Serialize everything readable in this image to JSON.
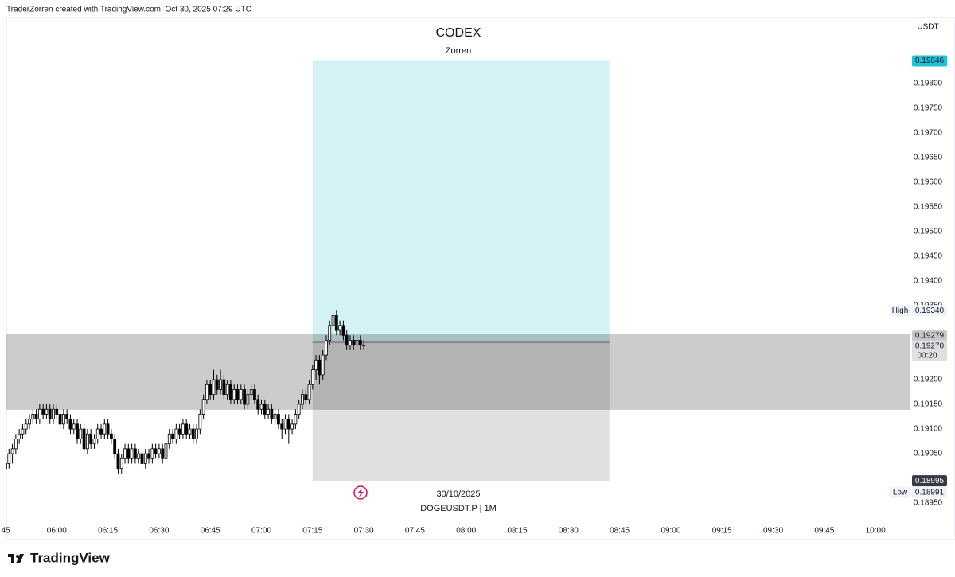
{
  "header": "TraderZorren created with TradingView.com, Oct 30, 2025 07:29 UTC",
  "footer": {
    "brand": "TradingView"
  },
  "chart_data": {
    "type": "candlestick",
    "title": "CODEX",
    "subtitle": "Zorren",
    "date_label": "30/10/2025",
    "symbol": "DOGEUSDT.P  |  1M",
    "currency": "USDT",
    "up_color": "#ffffff",
    "down_color": "#000000",
    "x": [
      "05:45",
      "05:46",
      "05:47",
      "05:48",
      "05:49",
      "05:50",
      "05:51",
      "05:52",
      "05:53",
      "05:54",
      "05:55",
      "05:56",
      "05:57",
      "05:58",
      "05:59",
      "06:00",
      "06:01",
      "06:02",
      "06:03",
      "06:04",
      "06:05",
      "06:06",
      "06:07",
      "06:08",
      "06:09",
      "06:10",
      "06:11",
      "06:12",
      "06:13",
      "06:14",
      "06:15",
      "06:16",
      "06:17",
      "06:18",
      "06:19",
      "06:20",
      "06:21",
      "06:22",
      "06:23",
      "06:24",
      "06:25",
      "06:26",
      "06:27",
      "06:28",
      "06:29",
      "06:30",
      "06:31",
      "06:32",
      "06:33",
      "06:34",
      "06:35",
      "06:36",
      "06:37",
      "06:38",
      "06:39",
      "06:40",
      "06:41",
      "06:42",
      "06:43",
      "06:44",
      "06:45",
      "06:46",
      "06:47",
      "06:48",
      "06:49",
      "06:50",
      "06:51",
      "06:52",
      "06:53",
      "06:54",
      "06:55",
      "06:56",
      "06:57",
      "06:58",
      "06:59",
      "07:00",
      "07:01",
      "07:02",
      "07:03",
      "07:04",
      "07:05",
      "07:06",
      "07:07",
      "07:08",
      "07:09",
      "07:10",
      "07:11",
      "07:12",
      "07:13",
      "07:14",
      "07:15",
      "07:16",
      "07:17",
      "07:18",
      "07:19",
      "07:20",
      "07:21",
      "07:22",
      "07:23",
      "07:24",
      "07:25",
      "07:26",
      "07:27",
      "07:28",
      "07:29",
      "07:30"
    ],
    "ohlc": [
      [
        0.1902,
        0.1904,
        0.18991,
        0.1903
      ],
      [
        0.1903,
        0.1906,
        0.1902,
        0.1905
      ],
      [
        0.1905,
        0.1907,
        0.1903,
        0.1906
      ],
      [
        0.1906,
        0.1909,
        0.1905,
        0.1908
      ],
      [
        0.1908,
        0.191,
        0.1907,
        0.1909
      ],
      [
        0.1909,
        0.1911,
        0.1908,
        0.191
      ],
      [
        0.191,
        0.1912,
        0.1909,
        0.1911
      ],
      [
        0.1911,
        0.1913,
        0.191,
        0.1912
      ],
      [
        0.1912,
        0.1914,
        0.1911,
        0.1913
      ],
      [
        0.1913,
        0.1914,
        0.1911,
        0.1912
      ],
      [
        0.1912,
        0.1915,
        0.1911,
        0.1914
      ],
      [
        0.1914,
        0.1915,
        0.1912,
        0.1913
      ],
      [
        0.1913,
        0.1915,
        0.1912,
        0.1914
      ],
      [
        0.1914,
        0.1915,
        0.1911,
        0.1912
      ],
      [
        0.1912,
        0.1915,
        0.1911,
        0.1914
      ],
      [
        0.1914,
        0.1915,
        0.1912,
        0.1913
      ],
      [
        0.1913,
        0.1914,
        0.191,
        0.1911
      ],
      [
        0.1911,
        0.1914,
        0.191,
        0.1913
      ],
      [
        0.1913,
        0.1914,
        0.1911,
        0.1912
      ],
      [
        0.1912,
        0.1913,
        0.1909,
        0.191
      ],
      [
        0.191,
        0.1912,
        0.1909,
        0.1911
      ],
      [
        0.1911,
        0.1912,
        0.1907,
        0.1908
      ],
      [
        0.1908,
        0.1911,
        0.1907,
        0.191
      ],
      [
        0.191,
        0.1911,
        0.1905,
        0.1906
      ],
      [
        0.1906,
        0.191,
        0.1905,
        0.1909
      ],
      [
        0.1909,
        0.191,
        0.1906,
        0.1907
      ],
      [
        0.1907,
        0.1909,
        0.1906,
        0.1908
      ],
      [
        0.1908,
        0.1911,
        0.1907,
        0.191
      ],
      [
        0.191,
        0.1911,
        0.1908,
        0.1909
      ],
      [
        0.1909,
        0.1912,
        0.1908,
        0.1911
      ],
      [
        0.1911,
        0.1912,
        0.1908,
        0.1909
      ],
      [
        0.1909,
        0.191,
        0.1907,
        0.1908
      ],
      [
        0.1908,
        0.1909,
        0.1904,
        0.1905
      ],
      [
        0.1905,
        0.1906,
        0.1901,
        0.1902
      ],
      [
        0.1902,
        0.1905,
        0.1901,
        0.1904
      ],
      [
        0.1904,
        0.1907,
        0.1903,
        0.1906
      ],
      [
        0.1906,
        0.1907,
        0.1903,
        0.1904
      ],
      [
        0.1904,
        0.1907,
        0.1903,
        0.1906
      ],
      [
        0.1906,
        0.1907,
        0.1903,
        0.1904
      ],
      [
        0.1904,
        0.1906,
        0.1903,
        0.1905
      ],
      [
        0.1905,
        0.1906,
        0.1902,
        0.1903
      ],
      [
        0.1903,
        0.1906,
        0.1902,
        0.1905
      ],
      [
        0.1905,
        0.1906,
        0.1903,
        0.1904
      ],
      [
        0.1904,
        0.1907,
        0.1903,
        0.1906
      ],
      [
        0.1906,
        0.1907,
        0.1904,
        0.1905
      ],
      [
        0.1905,
        0.1907,
        0.1904,
        0.1906
      ],
      [
        0.1906,
        0.1907,
        0.1903,
        0.1904
      ],
      [
        0.1904,
        0.1908,
        0.1903,
        0.1907
      ],
      [
        0.1907,
        0.191,
        0.1906,
        0.1909
      ],
      [
        0.1909,
        0.191,
        0.1907,
        0.1908
      ],
      [
        0.1908,
        0.1911,
        0.1907,
        0.191
      ],
      [
        0.191,
        0.1911,
        0.1908,
        0.1909
      ],
      [
        0.1909,
        0.1912,
        0.1908,
        0.1911
      ],
      [
        0.1911,
        0.1912,
        0.1908,
        0.1909
      ],
      [
        0.1909,
        0.1911,
        0.1908,
        0.191
      ],
      [
        0.191,
        0.1911,
        0.1907,
        0.1908
      ],
      [
        0.1908,
        0.1911,
        0.1907,
        0.191
      ],
      [
        0.191,
        0.1914,
        0.1909,
        0.1913
      ],
      [
        0.1913,
        0.1917,
        0.1912,
        0.1916
      ],
      [
        0.1916,
        0.192,
        0.1915,
        0.1919
      ],
      [
        0.1919,
        0.192,
        0.1916,
        0.1917
      ],
      [
        0.1917,
        0.1922,
        0.1916,
        0.192
      ],
      [
        0.192,
        0.1921,
        0.1917,
        0.1918
      ],
      [
        0.1918,
        0.1922,
        0.1917,
        0.192
      ],
      [
        0.192,
        0.1921,
        0.1916,
        0.1917
      ],
      [
        0.1917,
        0.192,
        0.1916,
        0.1919
      ],
      [
        0.1919,
        0.192,
        0.1915,
        0.1916
      ],
      [
        0.1916,
        0.1919,
        0.1915,
        0.1918
      ],
      [
        0.1918,
        0.1919,
        0.1915,
        0.1916
      ],
      [
        0.1916,
        0.1919,
        0.1915,
        0.1918
      ],
      [
        0.1918,
        0.1919,
        0.1914,
        0.1915
      ],
      [
        0.1915,
        0.1918,
        0.1914,
        0.1917
      ],
      [
        0.1917,
        0.1919,
        0.1916,
        0.1918
      ],
      [
        0.1918,
        0.1919,
        0.1915,
        0.1916
      ],
      [
        0.1916,
        0.1917,
        0.1913,
        0.1914
      ],
      [
        0.1914,
        0.1916,
        0.1913,
        0.1915
      ],
      [
        0.1915,
        0.1916,
        0.1912,
        0.1913
      ],
      [
        0.1913,
        0.1915,
        0.1912,
        0.1914
      ],
      [
        0.1914,
        0.1915,
        0.1911,
        0.1912
      ],
      [
        0.1912,
        0.1914,
        0.1911,
        0.1913
      ],
      [
        0.1913,
        0.1914,
        0.191,
        0.1911
      ],
      [
        0.1911,
        0.1912,
        0.1908,
        0.191
      ],
      [
        0.191,
        0.1913,
        0.1909,
        0.1912
      ],
      [
        0.1912,
        0.1913,
        0.1907,
        0.191
      ],
      [
        0.191,
        0.1912,
        0.1909,
        0.1911
      ],
      [
        0.1911,
        0.1914,
        0.191,
        0.1913
      ],
      [
        0.1913,
        0.1916,
        0.1912,
        0.1915
      ],
      [
        0.1915,
        0.1918,
        0.1914,
        0.1917
      ],
      [
        0.1917,
        0.1918,
        0.1915,
        0.1916
      ],
      [
        0.1916,
        0.192,
        0.1915,
        0.1919
      ],
      [
        0.1919,
        0.1923,
        0.1918,
        0.1922
      ],
      [
        0.1922,
        0.1925,
        0.192,
        0.1924
      ],
      [
        0.1924,
        0.1925,
        0.1919,
        0.1921
      ],
      [
        0.1921,
        0.1926,
        0.192,
        0.1925
      ],
      [
        0.1925,
        0.1929,
        0.1924,
        0.1928
      ],
      [
        0.1928,
        0.1932,
        0.1927,
        0.1931
      ],
      [
        0.1931,
        0.1934,
        0.193,
        0.1933
      ],
      [
        0.1933,
        0.1934,
        0.1929,
        0.193
      ],
      [
        0.193,
        0.1932,
        0.1929,
        0.1931
      ],
      [
        0.1931,
        0.1932,
        0.1928,
        0.1929
      ],
      [
        0.1929,
        0.193,
        0.1926,
        0.1927
      ],
      [
        0.1927,
        0.1929,
        0.1926,
        0.1928
      ],
      [
        0.1928,
        0.1929,
        0.1926,
        0.1927
      ],
      [
        0.1927,
        0.1929,
        0.1926,
        0.1928
      ],
      [
        0.1928,
        0.1929,
        0.1926,
        0.1927
      ],
      [
        0.1927,
        0.1928,
        0.1926,
        0.1927
      ]
    ],
    "xlim": [
      "05:45",
      "10:10"
    ],
    "xticks": [
      {
        "value": "05:45",
        "label": "45"
      },
      "06:00",
      "06:15",
      "06:30",
      "06:45",
      "07:00",
      "07:15",
      "07:30",
      "07:45",
      "08:00",
      "08:15",
      "08:30",
      "08:45",
      "09:00",
      "09:15",
      "09:30",
      "09:45",
      "10:00"
    ],
    "ylim": [
      0.18913,
      0.19934
    ],
    "yticks": [
      {
        "value": 0.1895,
        "label": "0.18950"
      },
      {
        "value": 0.1905,
        "label": "0.19050"
      },
      {
        "value": 0.191,
        "label": "0.19100"
      },
      {
        "value": 0.1915,
        "label": "0.19150"
      },
      {
        "value": 0.192,
        "label": "0.19200"
      },
      {
        "value": 0.1935,
        "label": "0.19350"
      },
      {
        "value": 0.194,
        "label": "0.19400"
      },
      {
        "value": 0.1945,
        "label": "0.19450"
      },
      {
        "value": 0.195,
        "label": "0.19500"
      },
      {
        "value": 0.1955,
        "label": "0.19550"
      },
      {
        "value": 0.196,
        "label": "0.19600"
      },
      {
        "value": 0.1965,
        "label": "0.19650"
      },
      {
        "value": 0.197,
        "label": "0.19700"
      },
      {
        "value": 0.1975,
        "label": "0.19750"
      },
      {
        "value": 0.198,
        "label": "0.19800"
      }
    ],
    "grid": false,
    "zone": {
      "low": 0.19139,
      "high": 0.19292,
      "color": "rgba(0,0,0,0.2)"
    },
    "position": {
      "start": "07:15",
      "end": "08:42",
      "target": {
        "value": 0.19846,
        "label": "0.19846",
        "color": "#d4f1f4",
        "tag_color": "#22c1d6"
      },
      "entry": {
        "value": 0.19279,
        "label": "0.19279",
        "color": "#8a8a8a",
        "tag_color": "#c8c8c8"
      },
      "stop": {
        "value": 0.18995,
        "label": "0.18995",
        "color": "rgba(0,0,0,0.12)",
        "tag_color": "#363a45"
      }
    },
    "last_price": {
      "value": 0.1927,
      "label": "0.19270",
      "countdown": "00:20"
    },
    "high_marker": {
      "name": "High",
      "value": 0.1934,
      "label": "0.19340"
    },
    "low_marker": {
      "name": "Low",
      "value": 0.18991,
      "label": "0.18991"
    }
  }
}
